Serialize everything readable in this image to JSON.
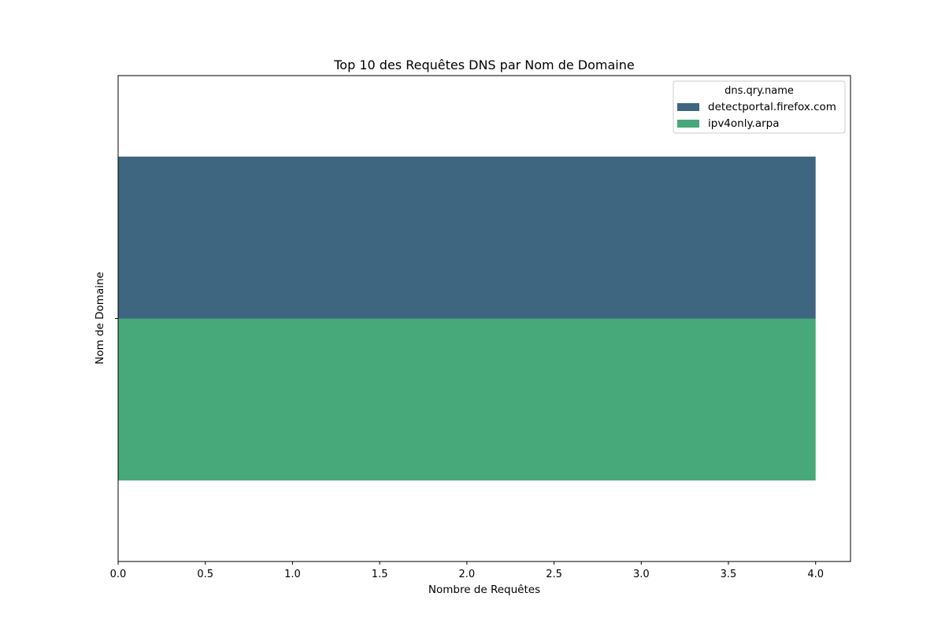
{
  "chart_data": {
    "type": "bar",
    "orientation": "horizontal",
    "title": "Top 10 des Requêtes DNS par Nom de Domaine",
    "xlabel": "Nombre de Requêtes",
    "ylabel": "Nom de Domaine",
    "xlim": [
      0,
      4.2
    ],
    "xticks": [
      "0.0",
      "0.5",
      "1.0",
      "1.5",
      "2.0",
      "2.5",
      "3.0",
      "3.5",
      "4.0"
    ],
    "categories": [
      ""
    ],
    "series": [
      {
        "name": "detectportal.firefox.com",
        "values": [
          4
        ],
        "color": "#3e6680"
      },
      {
        "name": "ipv4only.arpa",
        "values": [
          4
        ],
        "color": "#47a879"
      }
    ],
    "legend": {
      "title": "dns.qry.name",
      "placement": "top-right"
    },
    "grid": false
  }
}
